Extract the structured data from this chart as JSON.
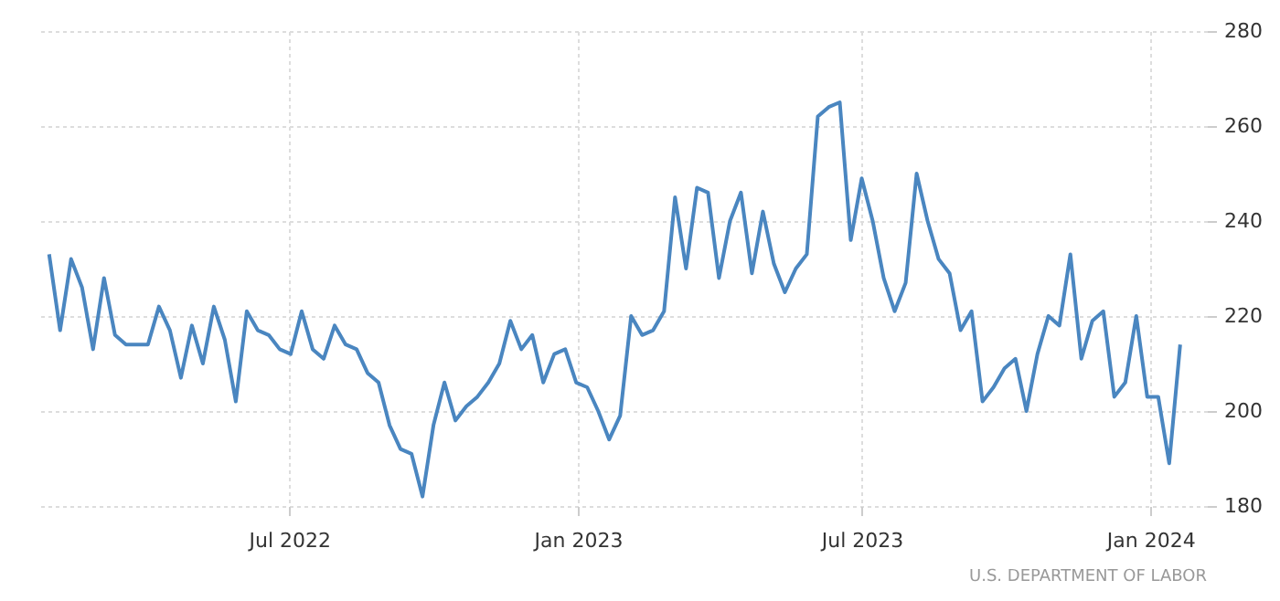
{
  "chart_data": {
    "type": "line",
    "x": [
      "2022-01-29",
      "2022-02-05",
      "2022-02-12",
      "2022-02-19",
      "2022-02-26",
      "2022-03-05",
      "2022-03-12",
      "2022-03-19",
      "2022-03-26",
      "2022-04-02",
      "2022-04-09",
      "2022-04-16",
      "2022-04-23",
      "2022-04-30",
      "2022-05-07",
      "2022-05-14",
      "2022-05-21",
      "2022-05-28",
      "2022-06-04",
      "2022-06-11",
      "2022-06-18",
      "2022-06-25",
      "2022-07-02",
      "2022-07-09",
      "2022-07-16",
      "2022-07-23",
      "2022-07-30",
      "2022-08-06",
      "2022-08-13",
      "2022-08-20",
      "2022-08-27",
      "2022-09-03",
      "2022-09-10",
      "2022-09-17",
      "2022-09-24",
      "2022-10-01",
      "2022-10-08",
      "2022-10-15",
      "2022-10-22",
      "2022-10-29",
      "2022-11-05",
      "2022-11-12",
      "2022-11-19",
      "2022-11-26",
      "2022-12-03",
      "2022-12-10",
      "2022-12-17",
      "2022-12-24",
      "2022-12-31",
      "2023-01-07",
      "2023-01-14",
      "2023-01-21",
      "2023-01-28",
      "2023-02-04",
      "2023-02-11",
      "2023-02-18",
      "2023-02-25",
      "2023-03-04",
      "2023-03-11",
      "2023-03-18",
      "2023-03-25",
      "2023-04-01",
      "2023-04-08",
      "2023-04-15",
      "2023-04-22",
      "2023-04-29",
      "2023-05-06",
      "2023-05-13",
      "2023-05-20",
      "2023-05-27",
      "2023-06-03",
      "2023-06-10",
      "2023-06-17",
      "2023-06-24",
      "2023-07-01",
      "2023-07-08",
      "2023-07-15",
      "2023-07-22",
      "2023-07-29",
      "2023-08-05",
      "2023-08-12",
      "2023-08-19",
      "2023-08-26",
      "2023-09-02",
      "2023-09-09",
      "2023-09-16",
      "2023-09-23",
      "2023-09-30",
      "2023-10-07",
      "2023-10-14",
      "2023-10-21",
      "2023-10-28",
      "2023-11-04",
      "2023-11-11",
      "2023-11-18",
      "2023-11-25",
      "2023-12-02",
      "2023-12-09",
      "2023-12-16",
      "2023-12-23",
      "2023-12-30",
      "2024-01-06",
      "2024-01-13",
      "2024-01-20"
    ],
    "series": [
      {
        "color": "#4a86c0",
        "values": [
          233,
          217,
          232,
          226,
          213,
          228,
          216,
          214,
          214,
          214,
          222,
          217,
          207,
          218,
          210,
          222,
          215,
          202,
          221,
          217,
          216,
          213,
          212,
          221,
          213,
          211,
          218,
          214,
          213,
          208,
          206,
          197,
          192,
          191,
          182,
          197,
          206,
          198,
          201,
          203,
          206,
          210,
          219,
          213,
          216,
          206,
          212,
          213,
          206,
          205,
          200,
          194,
          199,
          220,
          216,
          217,
          221,
          245,
          230,
          247,
          246,
          228,
          240,
          246,
          229,
          242,
          231,
          225,
          230,
          233,
          262,
          264,
          265,
          236,
          249,
          240,
          228,
          221,
          227,
          250,
          240,
          232,
          229,
          217,
          221,
          202,
          205,
          209,
          211,
          200,
          212,
          220,
          218,
          233,
          211,
          219,
          221,
          203,
          206,
          220,
          203,
          203,
          189,
          214
        ]
      }
    ],
    "xlim": [
      "2022-01-21",
      "2024-02-06"
    ],
    "xticks": [
      {
        "value": "2022-07-01",
        "label": "Jul 2022"
      },
      {
        "value": "2023-01-01",
        "label": "Jan 2023"
      },
      {
        "value": "2023-07-01",
        "label": "Jul 2023"
      },
      {
        "value": "2024-01-01",
        "label": "Jan 2024"
      }
    ],
    "ylim": [
      180,
      280
    ],
    "yticks": [
      180,
      200,
      220,
      240,
      260,
      280
    ],
    "grid": true,
    "marker": "none",
    "line_style": "solid",
    "annotations": [
      "U.S. DEPARTMENT OF LABOR"
    ]
  }
}
